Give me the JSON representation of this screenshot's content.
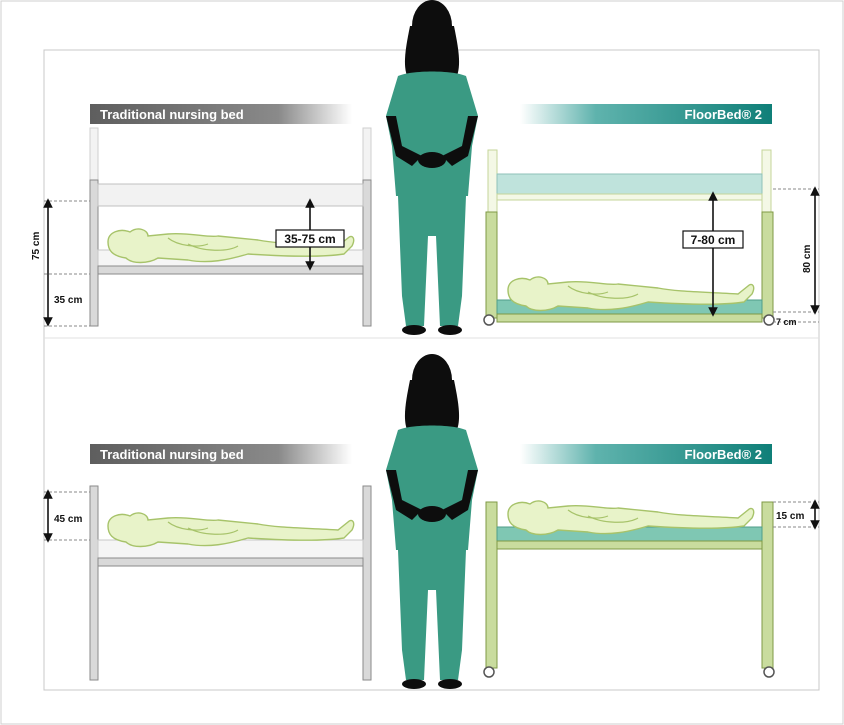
{
  "colors": {
    "nurse_scrubs": "#3a9a83",
    "nurse_skin": "#0d0d0d",
    "floorbed_frame": "#c9dc9e",
    "floorbed_frame_stroke": "#7f9a45",
    "mattress_teal": "#7fc7b3",
    "rail_cyan": "#bfe3dc",
    "traditional_frame": "#d9d9d9",
    "traditional_stroke": "#8a8a8a",
    "patient_fill": "#e8f3c9",
    "patient_stroke": "#a7c36a",
    "banner_gray": "#6e6e6e",
    "banner_teal": "#0f7f78"
  },
  "panels": [
    {
      "left_banner": "Traditional nursing bed",
      "right_banner": "FloorBed® 2",
      "left_labels": {
        "total": "75 cm",
        "low": "35 cm",
        "range": "35-75 cm"
      },
      "right_labels": {
        "total": "80 cm",
        "low": "7 cm",
        "range": "7-80 cm"
      }
    },
    {
      "left_banner": "Traditional nursing bed",
      "right_banner": "FloorBed® 2",
      "left_labels": {
        "height": "45 cm"
      },
      "right_labels": {
        "height": "15 cm"
      }
    }
  ]
}
